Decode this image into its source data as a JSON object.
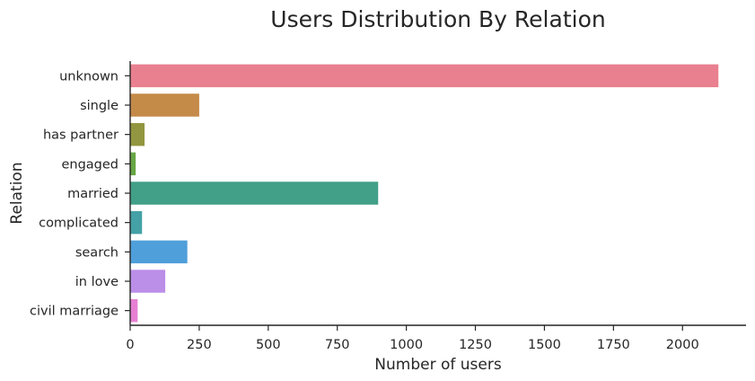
{
  "chart_data": {
    "type": "bar",
    "orientation": "horizontal",
    "title": "Users Distribution By Relation",
    "xlabel": "Number of users",
    "ylabel": "Relation",
    "categories": [
      "unknown",
      "single",
      "has partner",
      "engaged",
      "married",
      "complicated",
      "search",
      "in love",
      "civil marriage"
    ],
    "values": [
      2130,
      250,
      52,
      20,
      898,
      43,
      207,
      127,
      27
    ],
    "colors": [
      "#e8808f",
      "#c48a48",
      "#929640",
      "#68a645",
      "#41a087",
      "#44a1a6",
      "#4f9fda",
      "#bb8ee8",
      "#e67fd2"
    ],
    "xlim": [
      0,
      2230
    ],
    "xticks": [
      0,
      250,
      500,
      750,
      1000,
      1250,
      1500,
      1750,
      2000
    ],
    "grid": false,
    "legend": "none"
  }
}
